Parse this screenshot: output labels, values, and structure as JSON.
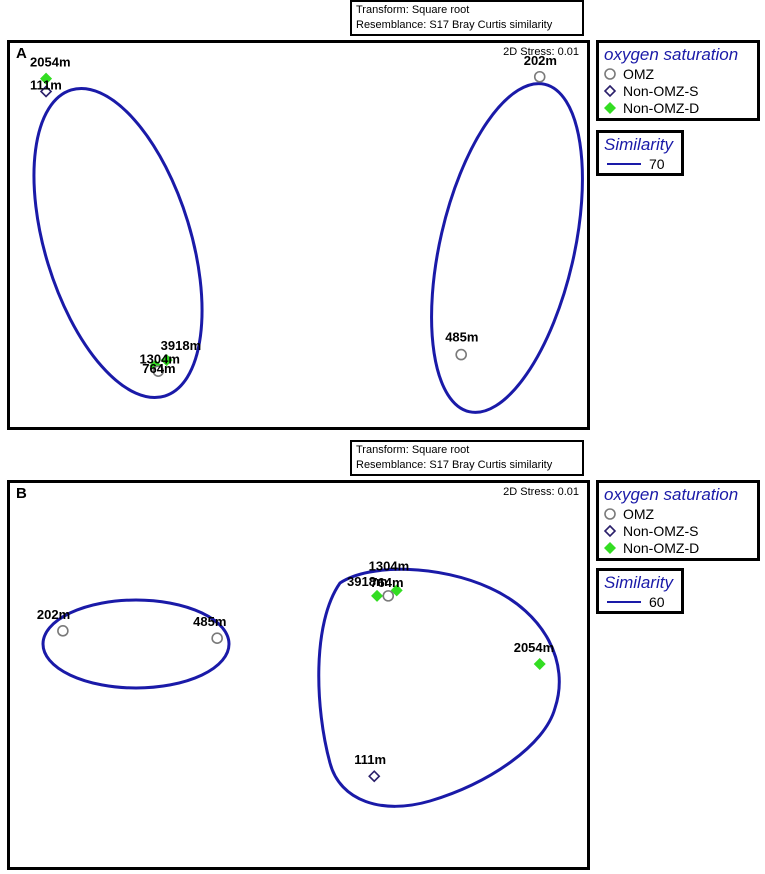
{
  "chart_data": [
    {
      "type": "scatter",
      "panel": "A",
      "transform": "Transform: Square root",
      "resemblance": "Resemblance: S17 Bray Curtis similarity",
      "stress": "2D Stress: 0.01",
      "legend_title": "oxygen saturation",
      "legend_items": [
        {
          "label": "OMZ",
          "marker": "open-circle",
          "color": "#7a7a7a"
        },
        {
          "label": "Non-OMZ-S",
          "marker": "open-diamond",
          "color": "#2a1f6a"
        },
        {
          "label": "Non-OMZ-D",
          "marker": "filled-diamond",
          "color": "#33dd22"
        }
      ],
      "similarity_title": "Similarity",
      "similarity_value": "70",
      "contour_color": "#1a1aa8",
      "points": [
        {
          "label": "2054m",
          "group": "Non-OMZ-D",
          "x": 0.05,
          "y": 0.925
        },
        {
          "label": "111m",
          "group": "Non-OMZ-S",
          "x": 0.05,
          "y": 0.89
        },
        {
          "label": "202m",
          "group": "OMZ",
          "x": 0.93,
          "y": 0.93
        },
        {
          "label": "3918m",
          "group": "Non-OMZ-D",
          "x": 0.265,
          "y": 0.16
        },
        {
          "label": "1304m",
          "group": "Non-OMZ-D",
          "x": 0.245,
          "y": 0.145
        },
        {
          "label": "764m",
          "group": "OMZ",
          "x": 0.25,
          "y": 0.13
        },
        {
          "label": "485m",
          "group": "OMZ",
          "x": 0.79,
          "y": 0.175
        }
      ]
    },
    {
      "type": "scatter",
      "panel": "B",
      "transform": "Transform: Square root",
      "resemblance": "Resemblance: S17 Bray Curtis similarity",
      "stress": "2D Stress: 0.01",
      "legend_title": "oxygen saturation",
      "legend_items": [
        {
          "label": "OMZ",
          "marker": "open-circle",
          "color": "#7a7a7a"
        },
        {
          "label": "Non-OMZ-S",
          "marker": "open-diamond",
          "color": "#2a1f6a"
        },
        {
          "label": "Non-OMZ-D",
          "marker": "filled-diamond",
          "color": "#33dd22"
        }
      ],
      "similarity_title": "Similarity",
      "similarity_value": "60",
      "contour_color": "#1a1aa8",
      "points": [
        {
          "label": "202m",
          "group": "OMZ",
          "x": 0.08,
          "y": 0.62
        },
        {
          "label": "485m",
          "group": "OMZ",
          "x": 0.355,
          "y": 0.6
        },
        {
          "label": "3918m",
          "group": "Non-OMZ-D",
          "x": 0.64,
          "y": 0.715
        },
        {
          "label": "1304m",
          "group": "Non-OMZ-D",
          "x": 0.675,
          "y": 0.73
        },
        {
          "label": "764m",
          "group": "OMZ",
          "x": 0.66,
          "y": 0.715
        },
        {
          "label": "2054m",
          "group": "Non-OMZ-D",
          "x": 0.93,
          "y": 0.53
        },
        {
          "label": "111m",
          "group": "Non-OMZ-S",
          "x": 0.635,
          "y": 0.225
        }
      ]
    }
  ]
}
